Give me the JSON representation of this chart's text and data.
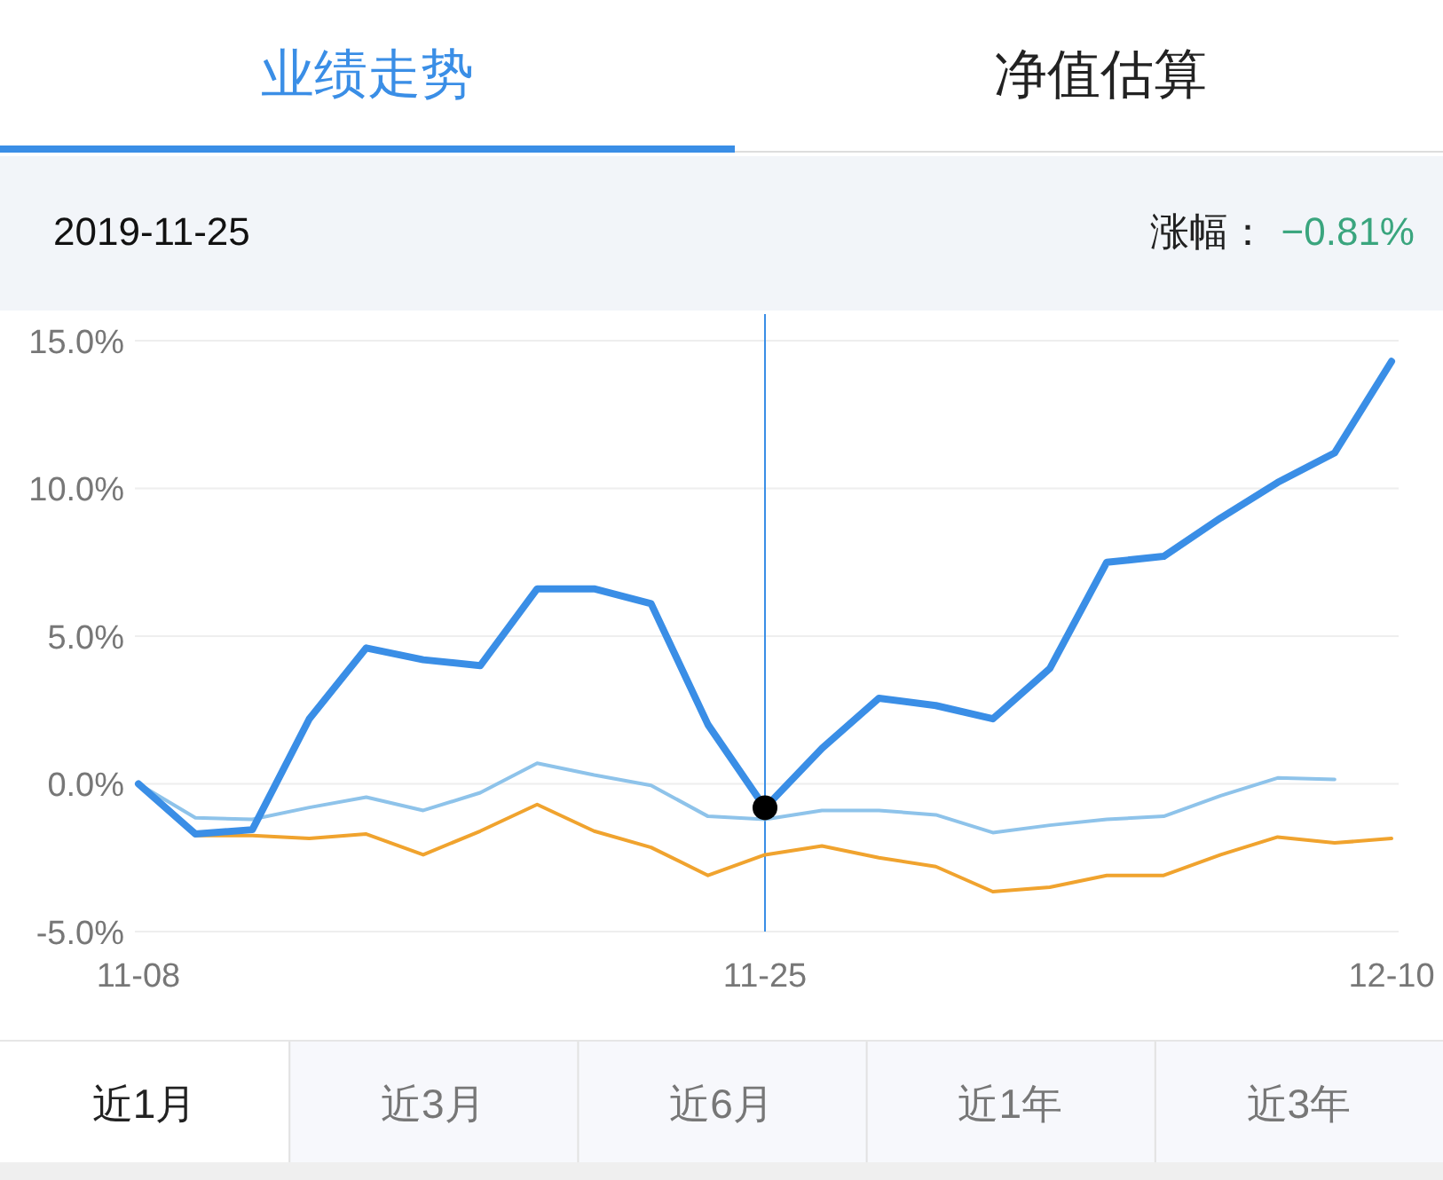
{
  "chart_data": {
    "type": "line",
    "annotations": [
      "业绩走势",
      "净值估算",
      "2019-11-25",
      "涨幅：",
      "−0.81%",
      "近1月",
      "近3月",
      "近6月",
      "近1年",
      "近3年"
    ],
    "categories": [
      "11-08",
      null,
      null,
      null,
      null,
      null,
      null,
      null,
      null,
      null,
      null,
      "11-25",
      null,
      null,
      null,
      null,
      null,
      null,
      null,
      null,
      null,
      null,
      "12-10"
    ],
    "series": [
      {
        "color": "#f0a32e",
        "values": [
          0,
          -1.75,
          -1.75,
          -1.85,
          -1.7,
          -2.4,
          -1.6,
          -0.7,
          -1.6,
          -2.15,
          -3.1,
          -2.4,
          -2.1,
          -2.5,
          -2.8,
          -3.65,
          -3.5,
          -3.1,
          -3.1,
          -2.4,
          -1.8,
          -2.0,
          -1.85
        ]
      },
      {
        "color": "#8ec3ea",
        "values": [
          0,
          -1.15,
          -1.2,
          -0.8,
          -0.45,
          -0.9,
          -0.3,
          0.7,
          0.3,
          -0.05,
          -1.1,
          -1.2,
          -0.9,
          -0.9,
          -1.05,
          -1.65,
          -1.4,
          -1.2,
          -1.1,
          -0.4,
          0.2,
          0.15,
          null
        ]
      },
      {
        "color": "#3a8ee6",
        "values": [
          0,
          -1.7,
          -1.55,
          2.2,
          4.6,
          4.2,
          4.0,
          6.6,
          6.6,
          6.1,
          2.0,
          -0.81,
          1.2,
          2.9,
          2.65,
          2.2,
          3.9,
          7.5,
          7.7,
          9.0,
          10.2,
          11.2,
          14.3
        ]
      },
      {
        "type": "scatter",
        "x": [
          "11-25"
        ],
        "values": [
          -0.81
        ],
        "color": "#000000"
      }
    ],
    "ref_lines": [
      {
        "axis": "x",
        "value": "11-25",
        "color": "#3a8ee6"
      }
    ],
    "ylim": [
      -5,
      15.9
    ],
    "yticks": [
      {
        "value": -5,
        "label": "-5.0%"
      },
      {
        "value": 0,
        "label": "0.0%"
      },
      {
        "value": 5,
        "label": "5.0%"
      },
      {
        "value": 10,
        "label": "10.0%"
      },
      {
        "value": 15,
        "label": "15.0%"
      }
    ],
    "grid": "y"
  }
}
